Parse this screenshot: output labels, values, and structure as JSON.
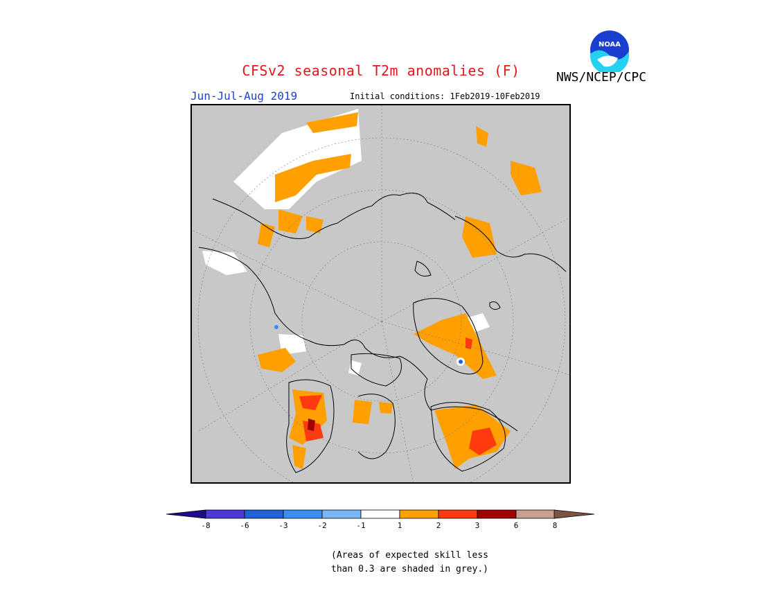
{
  "title": "CFSv2 seasonal T2m anomalies (F)",
  "organization": "NWS/NCEP/CPC",
  "logo_text": "NOAA",
  "season": "Jun-Jul-Aug 2019",
  "initial_conditions": "Initial conditions: 1Feb2019-10Feb2019",
  "map": {
    "projection": "north-polar-stereographic",
    "masked_color": "#c8c8c8",
    "coastline_color": "#000000"
  },
  "colorbar": {
    "colors": [
      "#1e0a8c",
      "#4b3bd2",
      "#1f63d6",
      "#3a8ff0",
      "#78b6f5",
      "#ffffff",
      "#ffa000",
      "#ff3a0e",
      "#a00000",
      "#c8a090",
      "#7d5341"
    ],
    "labels": [
      "-8",
      "-6",
      "-3",
      "-2",
      "-1",
      "1",
      "2",
      "3",
      "6",
      "8"
    ]
  },
  "note": {
    "line1": "(Areas of expected skill less",
    "line2": "than 0.3 are shaded in grey.)"
  }
}
